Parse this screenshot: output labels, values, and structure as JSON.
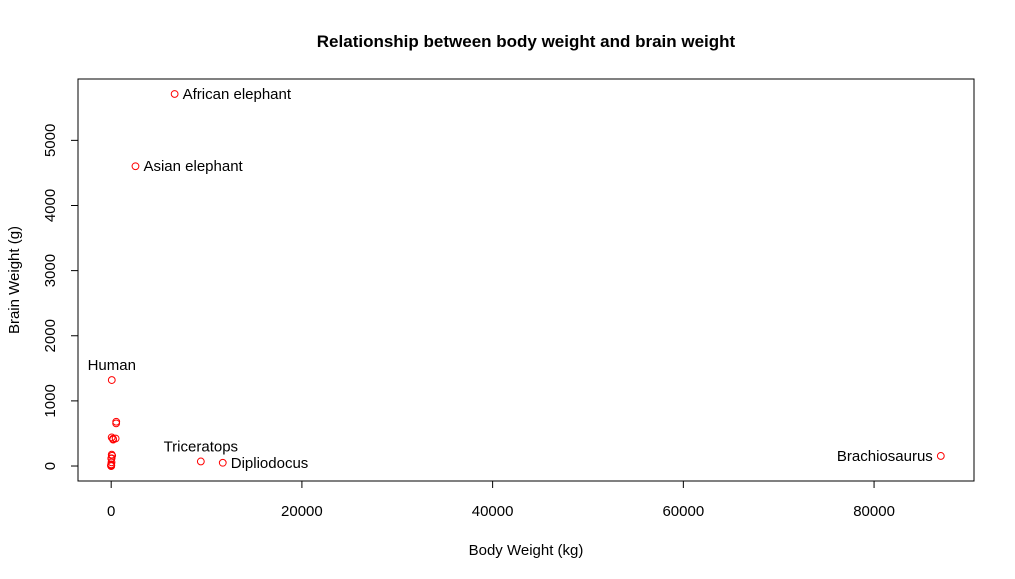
{
  "chart_data": {
    "type": "scatter",
    "title": "Relationship between body weight and brain weight",
    "xlabel": "Body Weight (kg)",
    "ylabel": "Brain Weight (g)",
    "xlim": [
      -3480,
      90480
    ],
    "ylim": [
      -230,
      5942
    ],
    "xticks": [
      0,
      20000,
      40000,
      60000,
      80000
    ],
    "yticks": [
      0,
      1000,
      2000,
      3000,
      4000,
      5000
    ],
    "xtick_labels": [
      "0",
      "20000",
      "40000",
      "60000",
      "80000"
    ],
    "ytick_labels": [
      "0",
      "1000",
      "2000",
      "3000",
      "4000",
      "5000"
    ],
    "grid": false,
    "marker_color": "#ff0000",
    "points": [
      {
        "x": 6654,
        "y": 5712,
        "label": "African elephant",
        "label_pos": "right"
      },
      {
        "x": 2547,
        "y": 4603,
        "label": "Asian elephant",
        "label_pos": "right"
      },
      {
        "x": 62,
        "y": 1320,
        "label": "Human",
        "label_pos": "above"
      },
      {
        "x": 9400,
        "y": 70,
        "label": "Triceratops",
        "label_pos": "above"
      },
      {
        "x": 11700,
        "y": 50,
        "label": "Dipliodocus",
        "label_pos": "right"
      },
      {
        "x": 87000,
        "y": 154.5,
        "label": "Brachiosaurus",
        "label_pos": "left"
      },
      {
        "x": 521,
        "y": 655,
        "label": ""
      },
      {
        "x": 465,
        "y": 423,
        "label": ""
      },
      {
        "x": 529,
        "y": 680,
        "label": ""
      },
      {
        "x": 187,
        "y": 419,
        "label": ""
      },
      {
        "x": 207,
        "y": 406,
        "label": ""
      },
      {
        "x": 36,
        "y": 119.5,
        "label": ""
      },
      {
        "x": 27.66,
        "y": 115,
        "label": ""
      },
      {
        "x": 55.5,
        "y": 175,
        "label": ""
      },
      {
        "x": 100,
        "y": 157,
        "label": ""
      },
      {
        "x": 52.16,
        "y": 440,
        "label": ""
      },
      {
        "x": 35,
        "y": 56,
        "label": ""
      },
      {
        "x": 10,
        "y": 115,
        "label": ""
      },
      {
        "x": 3.3,
        "y": 25.6,
        "label": ""
      },
      {
        "x": 1.35,
        "y": 8.1,
        "label": ""
      },
      {
        "x": 0.12,
        "y": 1,
        "label": ""
      },
      {
        "x": 0.023,
        "y": 0.4,
        "label": ""
      },
      {
        "x": 0.48,
        "y": 15.5,
        "label": ""
      },
      {
        "x": 0.28,
        "y": 1.9,
        "label": ""
      },
      {
        "x": 1.04,
        "y": 5.5,
        "label": ""
      },
      {
        "x": 0.425,
        "y": 6.4,
        "label": ""
      },
      {
        "x": 0.101,
        "y": 4,
        "label": ""
      }
    ]
  }
}
